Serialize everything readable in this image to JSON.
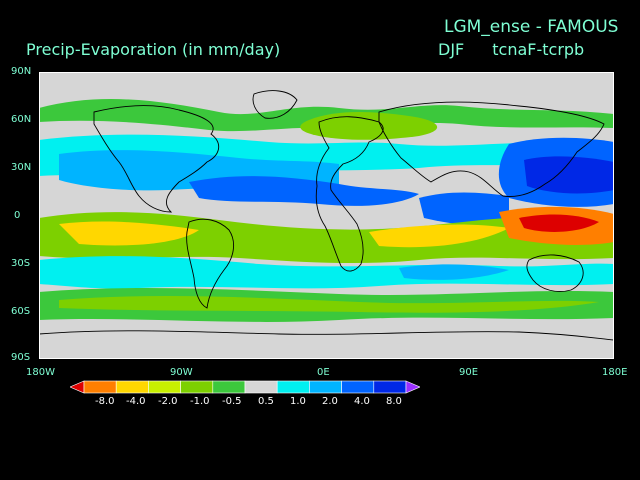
{
  "titles": {
    "left": "Precip-Evaporation (in mm/day)",
    "right_top": "LGM_ense - FAMOUS",
    "season": "DJF",
    "experiment": "tcnaF-tcrpb"
  },
  "axes": {
    "lat_ticks": [
      "90N",
      "60N",
      "30N",
      "0",
      "30S",
      "60S",
      "90S"
    ],
    "lon_ticks": [
      "180W",
      "90W",
      "0E",
      "90E",
      "180E"
    ]
  },
  "colorbar": {
    "levels": [
      "-8.0",
      "-4.0",
      "-2.0",
      "-1.0",
      "-0.5",
      "0.5",
      "1.0",
      "2.0",
      "4.0",
      "8.0"
    ],
    "colors": [
      "#dd0000",
      "#ff7f00",
      "#ffd700",
      "#c8f000",
      "#7dd000",
      "#3cc83c",
      "#d6d6d6",
      "#00f0f0",
      "#00b4ff",
      "#0064ff",
      "#0028e6",
      "#9b30ff"
    ]
  },
  "colors": {
    "background": "#000000",
    "title_text": "#7fffd4",
    "land_outline": "#000000",
    "neutral": "#d6d6d6"
  }
}
